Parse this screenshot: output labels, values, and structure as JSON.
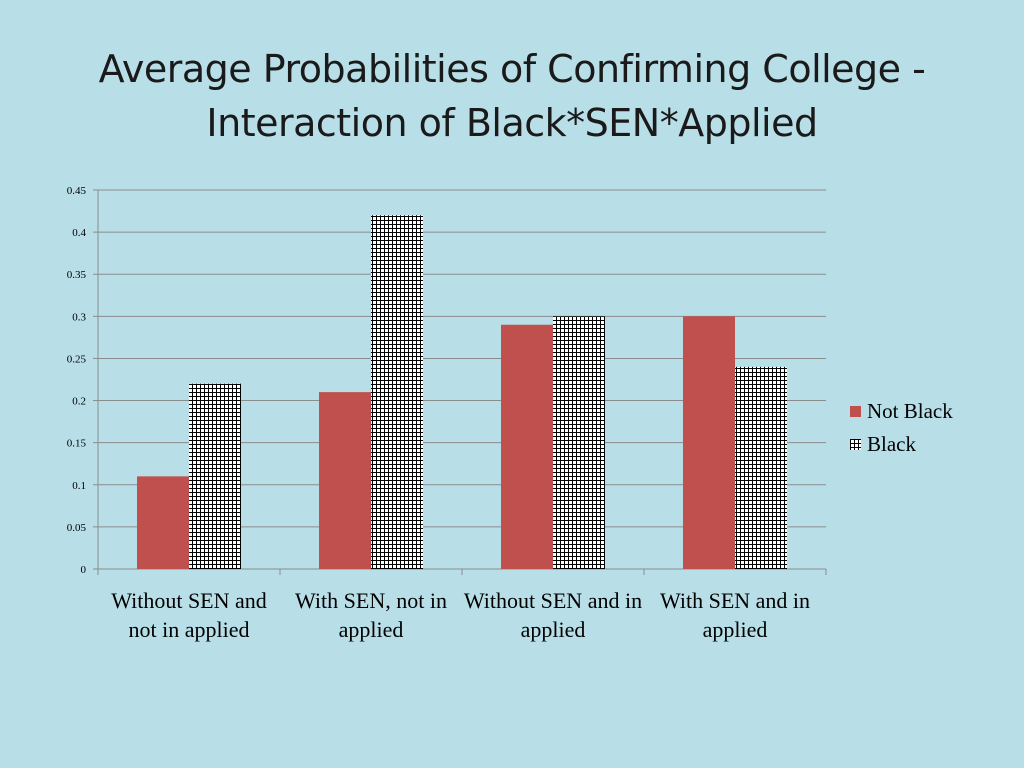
{
  "title_lines": [
    "Average Probabilities of Confirming College -",
    "Interaction of Black*SEN*Applied"
  ],
  "colors": {
    "background": "#b8dee8",
    "not_black": "#c0504d",
    "black_pattern": "#000000",
    "gridline": "#8c8c8c"
  },
  "chart_data": {
    "type": "bar",
    "title": "Average Probabilities of Confirming College - Interaction of Black*SEN*Applied",
    "categories": [
      "Without SEN and not in applied",
      "With SEN, not in applied",
      "Without SEN and  in applied",
      "With SEN and in applied"
    ],
    "series": [
      {
        "name": "Not Black",
        "values": [
          0.11,
          0.21,
          0.29,
          0.3
        ],
        "fill": "solid",
        "color": "#c0504d"
      },
      {
        "name": "Black",
        "values": [
          0.22,
          0.42,
          0.3,
          0.24
        ],
        "fill": "grid-pattern",
        "color": "#000000"
      }
    ],
    "ylim": [
      0,
      0.45
    ],
    "yticks": [
      "0",
      "0.05",
      "0.1",
      "0.15",
      "0.2",
      "0.25",
      "0.3",
      "0.35",
      "0.4",
      "0.45"
    ],
    "grid": true,
    "legend": "right",
    "xlabel": "",
    "ylabel": ""
  }
}
